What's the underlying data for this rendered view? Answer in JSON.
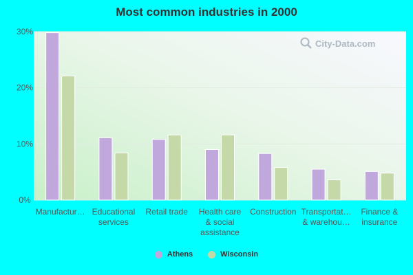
{
  "chart_data": {
    "type": "bar",
    "title": "Most common industries in 2000",
    "categories": [
      [
        "Manufactur…"
      ],
      [
        "Educational",
        "services"
      ],
      [
        "Retail trade"
      ],
      [
        "Health care",
        "& social",
        "assistance"
      ],
      [
        "Construction"
      ],
      [
        "Transportat…",
        "& warehou…"
      ],
      [
        "Finance &",
        "insurance"
      ]
    ],
    "series": [
      {
        "name": "Athens",
        "color": "#c0a7dc",
        "values": [
          29.8,
          11.1,
          10.8,
          9.0,
          8.3,
          5.5,
          5.1
        ]
      },
      {
        "name": "Wisconsin",
        "color": "#c5d9a8",
        "values": [
          22.1,
          8.4,
          11.6,
          11.6,
          5.8,
          3.6,
          4.8
        ]
      }
    ],
    "ylim": [
      0,
      30
    ],
    "yticks": [
      0,
      10,
      20,
      30
    ],
    "ytick_labels": [
      "0%",
      "10%",
      "20%",
      "30%"
    ],
    "grid": true,
    "legend": "bottom-center"
  },
  "watermark": {
    "text": "City-Data.com"
  }
}
